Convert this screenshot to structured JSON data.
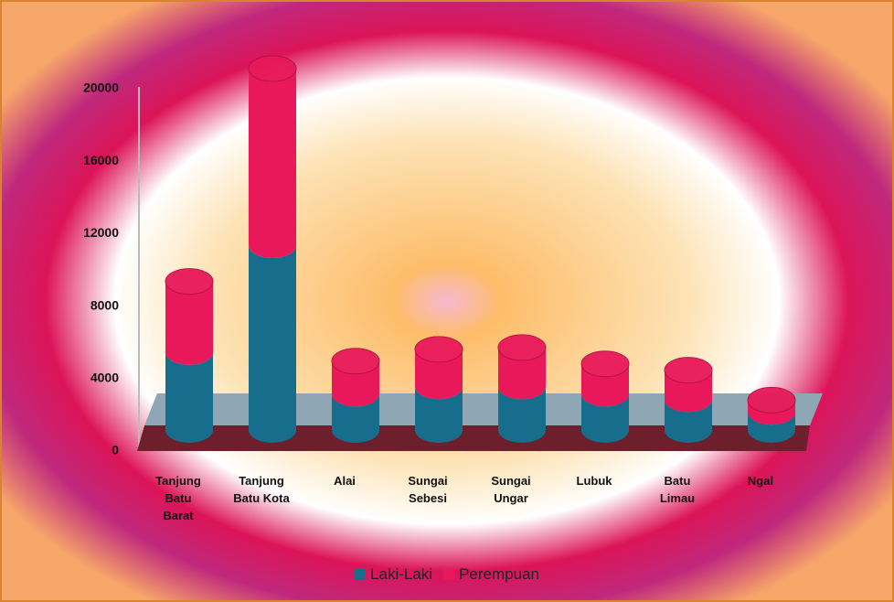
{
  "chart_data": {
    "type": "bar3d_stacked",
    "categories": [
      "Tanjung Batu Barat",
      "Tanjung Batu Kota",
      "Alai",
      "Sungai Sebesi",
      "Sungai Ungar",
      "Lubuk",
      "Batu Limau",
      "Ngal"
    ],
    "series": [
      {
        "name": "Laki-Laki",
        "color": "#176d8c",
        "values": [
          4300,
          10200,
          2000,
          2400,
          2400,
          2000,
          1700,
          1000
        ]
      },
      {
        "name": "Perempuan",
        "color": "#e8185a",
        "values": [
          3900,
          9750,
          1800,
          2050,
          2150,
          1650,
          1600,
          650
        ]
      }
    ],
    "ylim": [
      0,
      20000
    ],
    "yticks": [
      0,
      4000,
      8000,
      12000,
      16000,
      20000
    ],
    "legend": "bottom"
  }
}
